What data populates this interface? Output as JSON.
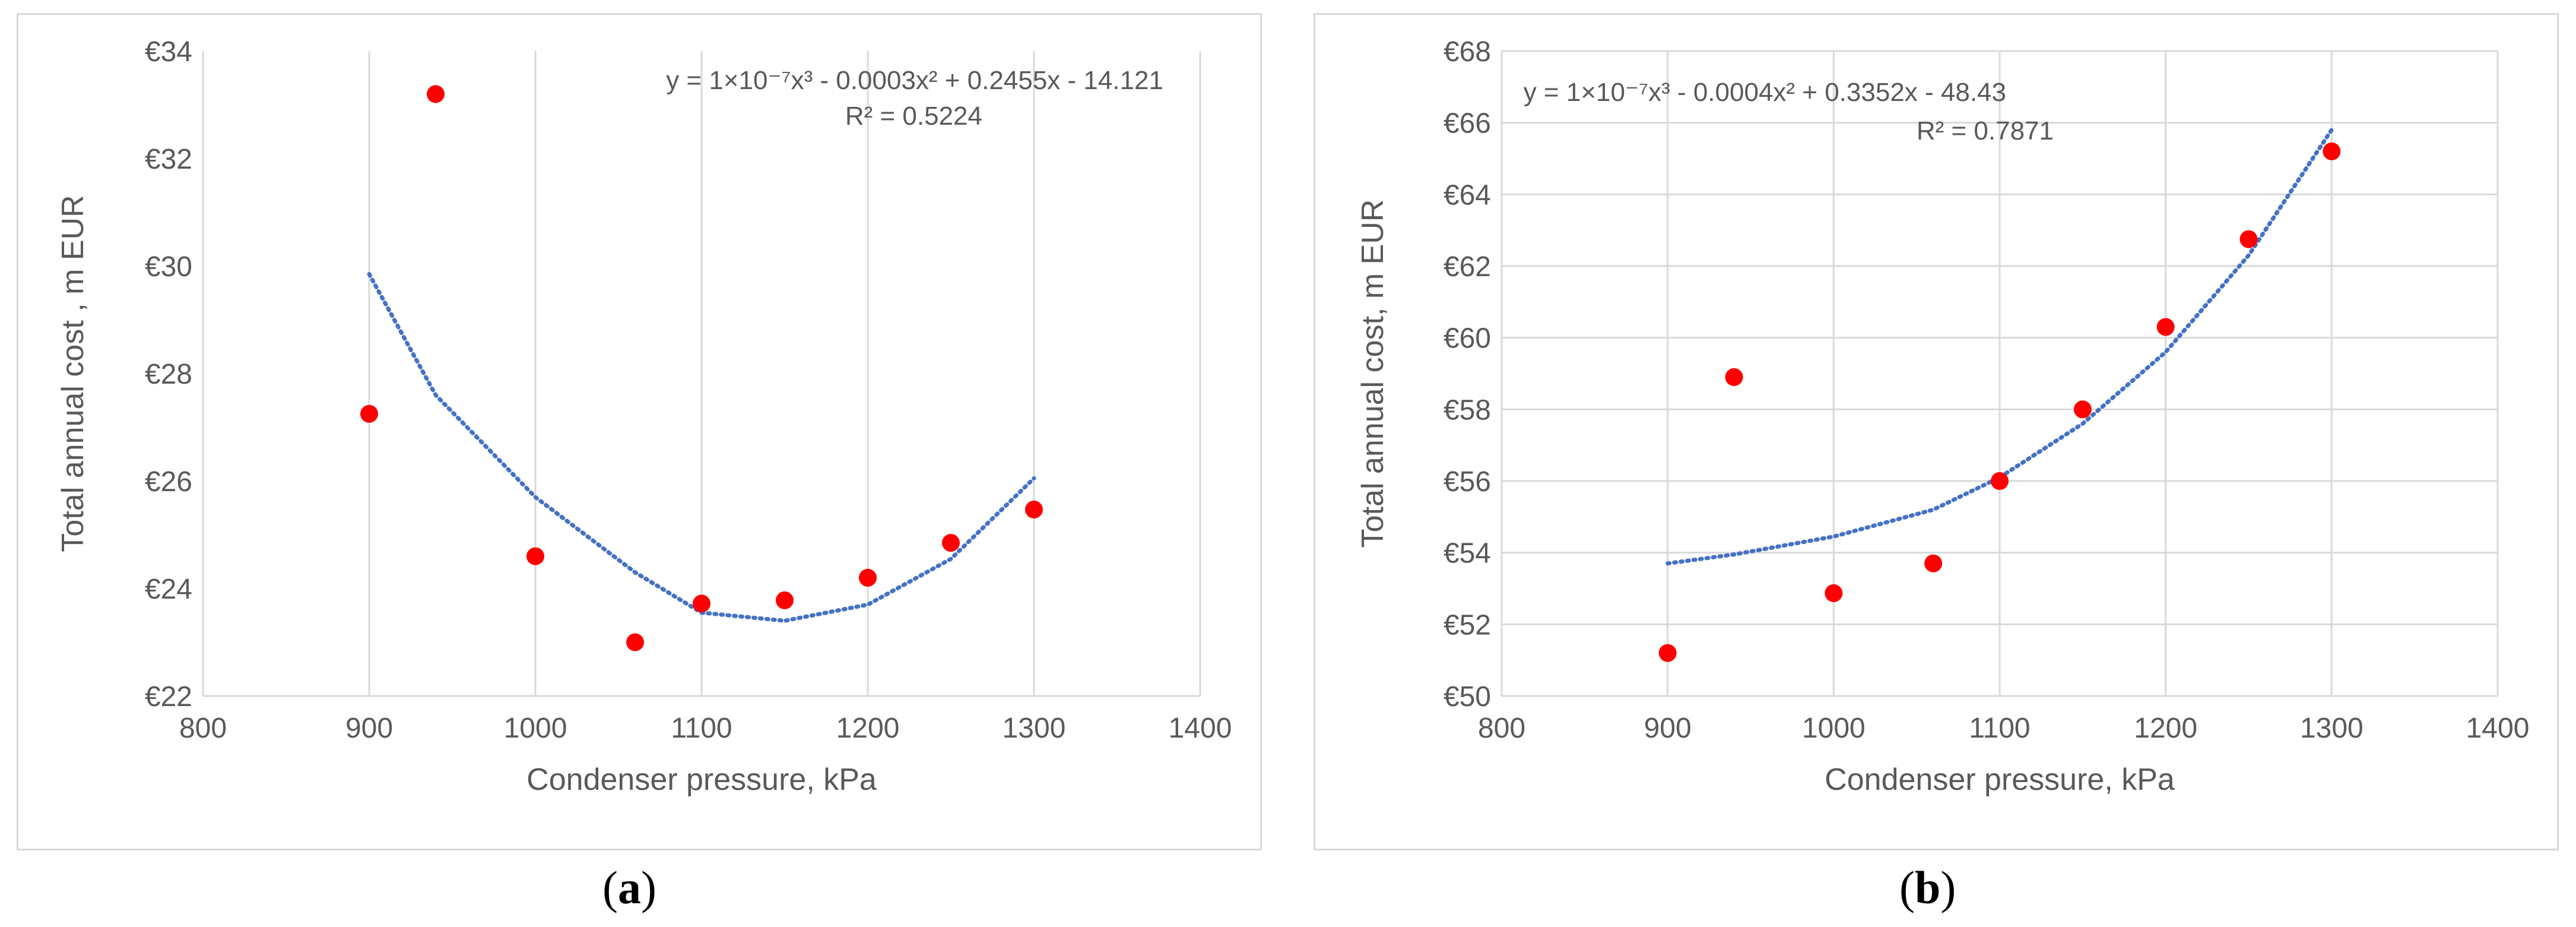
{
  "chart_data": [
    {
      "type": "scatter",
      "panel_label": "a",
      "xlabel": "Condenser pressure, kPa",
      "ylabel": "Total annual cost , m EUR",
      "xlim": [
        800,
        1400
      ],
      "ylim": [
        22,
        34
      ],
      "x_ticks": [
        "800",
        "900",
        "1000",
        "1100",
        "1200",
        "1300",
        "1400"
      ],
      "y_ticks": [
        "€22",
        "€24",
        "€26",
        "€28",
        "€30",
        "€32",
        "€34"
      ],
      "grid": "vertical",
      "series": [
        {
          "x": [
            900,
            940,
            1000,
            1060,
            1100,
            1150,
            1200,
            1250,
            1300
          ],
          "y": [
            27.25,
            33.2,
            24.6,
            23.0,
            23.72,
            23.78,
            24.2,
            24.85,
            25.47
          ],
          "color": "#ff0000"
        }
      ],
      "trendline": {
        "kind": "poly3",
        "range": [
          900,
          1300
        ],
        "color": "#4472c4",
        "equation": "y = 1×10⁻⁷x³ - 0.0003x² + 0.2455x - 14.121",
        "r2": "R² = 0.5224",
        "y": [
          29.85,
          27.6,
          25.7,
          24.3,
          23.55,
          23.4,
          23.7,
          24.55,
          26.05
        ]
      }
    },
    {
      "type": "scatter",
      "panel_label": "b",
      "xlabel": "Condenser pressure, kPa",
      "ylabel": "Total annual cost, m EUR",
      "xlim": [
        800,
        1400
      ],
      "ylim": [
        50,
        68
      ],
      "x_ticks": [
        "800",
        "900",
        "1000",
        "1100",
        "1200",
        "1300",
        "1400"
      ],
      "y_ticks": [
        "€50",
        "€52",
        "€54",
        "€56",
        "€58",
        "€60",
        "€62",
        "€64",
        "€66",
        "€68"
      ],
      "grid": "both",
      "series": [
        {
          "x": [
            900,
            940,
            1000,
            1060,
            1100,
            1150,
            1200,
            1250,
            1300
          ],
          "y": [
            51.2,
            58.9,
            52.87,
            53.7,
            56.0,
            58.0,
            60.3,
            62.75,
            65.2
          ],
          "color": "#ff0000"
        }
      ],
      "trendline": {
        "kind": "poly3",
        "range": [
          900,
          1300
        ],
        "color": "#4472c4",
        "equation": "y = 1×10⁻⁷x³ - 0.0004x² + 0.3352x - 48.43",
        "r2": "R² = 0.7871",
        "y": [
          53.7,
          53.95,
          54.45,
          55.2,
          56.1,
          57.6,
          59.6,
          62.3,
          65.8
        ]
      }
    }
  ]
}
